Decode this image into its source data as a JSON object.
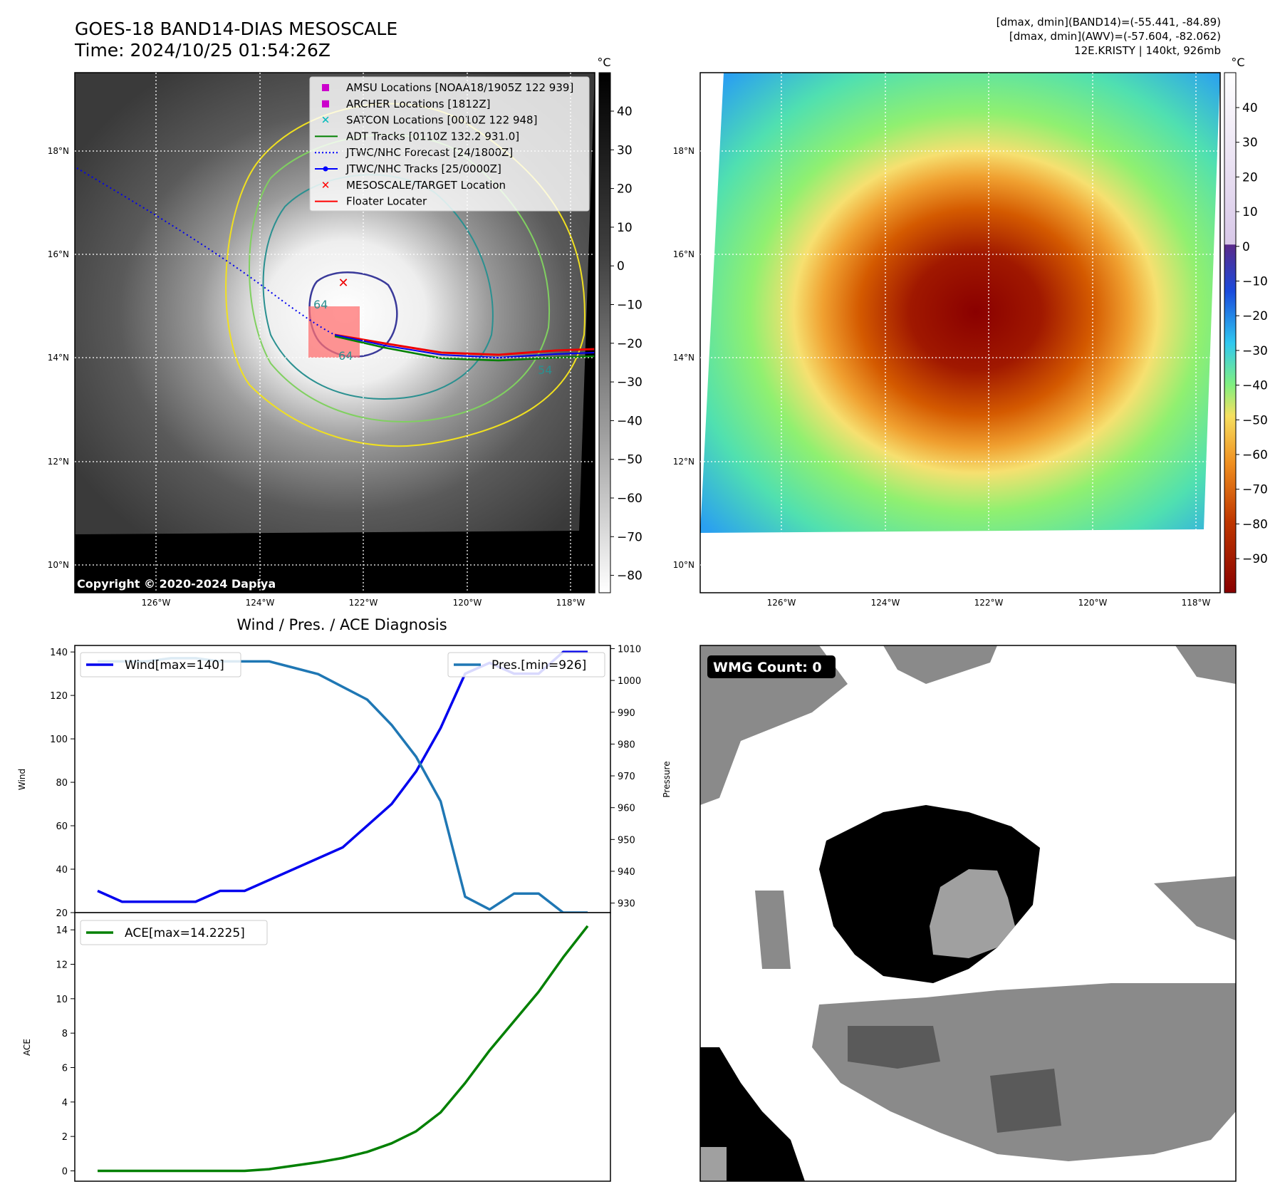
{
  "header": {
    "title": "GOES-18 BAND14-DIAS MESOSCALE",
    "time": "Time: 2024/10/25 01:54:26Z",
    "info_line1": "[dmax, dmin](BAND14)=(-55.441, -84.89)",
    "info_line2": "[dmax, dmin](AWV)=(-57.604, -82.062)",
    "info_line3": "12E.KRISTY | 140kt, 926mb"
  },
  "map_axes": {
    "lat_labels": [
      "18°N",
      "16°N",
      "14°N",
      "12°N",
      "10°N"
    ],
    "lon_labels": [
      "126°W",
      "124°W",
      "122°W",
      "120°W",
      "118°W"
    ]
  },
  "panel_gray": {
    "colorbar_unit": "°C",
    "colorbar_ticks": [
      "40",
      "30",
      "20",
      "10",
      "0",
      "−10",
      "−20",
      "−30",
      "−40",
      "−50",
      "−60",
      "−70",
      "−80"
    ],
    "copyright": "Copyright © 2020-2024 Dapiya",
    "legend": [
      {
        "label": "AMSU Locations [NOAA18/1905Z 122 939]",
        "color": "#cc00cc",
        "marker": "square"
      },
      {
        "label": "ARCHER Locations [1812Z]",
        "color": "#cc00cc",
        "marker": "square"
      },
      {
        "label": "SATCON Locations [0010Z 122 948]",
        "color": "#00bbbb",
        "marker": "x"
      },
      {
        "label": "ADT Tracks [0110Z 132.2 931.0]",
        "color": "#008000",
        "marker": "line"
      },
      {
        "label": "JTWC/NHC Forecast [24/1800Z]",
        "color": "#0000ff",
        "marker": "dotted"
      },
      {
        "label": "JTWC/NHC Tracks [25/0000Z]",
        "color": "#0000ff",
        "marker": "line-dot"
      },
      {
        "label": "MESOSCALE/TARGET Location",
        "color": "#ff0000",
        "marker": "x"
      },
      {
        "label": "Floater Locater",
        "color": "#ff0000",
        "marker": "line"
      }
    ],
    "contour_labels": [
      "64",
      "64",
      "54"
    ]
  },
  "panel_color": {
    "colorbar_unit": "°C",
    "colorbar_ticks": [
      "40",
      "30",
      "20",
      "10",
      "0",
      "−10",
      "−20",
      "−30",
      "−40",
      "−50",
      "−60",
      "−70",
      "−80",
      "−90"
    ]
  },
  "panel_wmg": {
    "badge": "WMG Count: 0"
  },
  "chart_data": [
    {
      "type": "line",
      "title": "Wind / Pres. / ACE Diagnosis",
      "ylabel": "Wind",
      "ylabel_right": "Pressure",
      "ylim": [
        20,
        143
      ],
      "ylim_right": [
        927,
        1011
      ],
      "yticks": [
        20,
        40,
        60,
        80,
        100,
        120,
        140
      ],
      "yticks_right": [
        930,
        940,
        950,
        960,
        970,
        980,
        990,
        1000,
        1010
      ],
      "x": [
        0,
        1,
        2,
        3,
        4,
        5,
        6,
        7,
        8,
        9,
        10,
        11,
        12,
        13,
        14,
        15,
        16,
        17,
        18,
        19,
        20
      ],
      "series": [
        {
          "name": "Wind[max=140]",
          "axis": "left",
          "color": "#0000ee",
          "values": [
            30,
            25,
            25,
            25,
            25,
            30,
            30,
            35,
            40,
            45,
            50,
            60,
            70,
            85,
            105,
            130,
            135,
            130,
            130,
            140,
            140
          ]
        },
        {
          "name": "Pres.[min=926]",
          "axis": "right",
          "color": "#1f77b4",
          "values": [
            1006,
            1006,
            1006,
            1007,
            1007,
            1006,
            1006,
            1006,
            1004,
            1002,
            998,
            994,
            986,
            976,
            962,
            932,
            928,
            933,
            933,
            927,
            927
          ]
        }
      ],
      "legend": "top-left and top-right"
    },
    {
      "type": "line",
      "ylabel": "ACE",
      "ylim": [
        -0.6,
        15
      ],
      "yticks": [
        0,
        2,
        4,
        6,
        8,
        10,
        12,
        14
      ],
      "x": [
        0,
        1,
        2,
        3,
        4,
        5,
        6,
        7,
        8,
        9,
        10,
        11,
        12,
        13,
        14,
        15,
        16,
        17,
        18,
        19,
        20
      ],
      "series": [
        {
          "name": "ACE[max=14.2225]",
          "color": "#008000",
          "values": [
            0,
            0,
            0,
            0,
            0,
            0,
            0,
            0.1,
            0.3,
            0.5,
            0.75,
            1.1,
            1.6,
            2.3,
            3.4,
            5.1,
            7.0,
            8.7,
            10.4,
            12.4,
            14.2225
          ]
        }
      ],
      "legend": "top-left"
    }
  ]
}
